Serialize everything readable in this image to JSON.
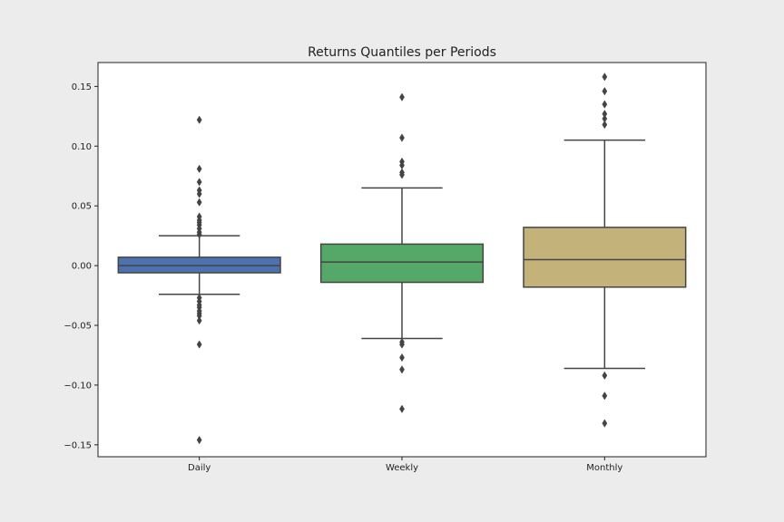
{
  "chart_data": {
    "type": "box",
    "title": "Returns Quantiles per Periods",
    "xlabel": "",
    "ylabel": "",
    "ylim": [
      -0.16,
      0.17
    ],
    "yticks": [
      -0.15,
      -0.1,
      -0.05,
      0.0,
      0.05,
      0.1,
      0.15
    ],
    "ytick_labels": [
      "−0.15",
      "−0.10",
      "−0.05",
      "0.00",
      "0.05",
      "0.10",
      "0.15"
    ],
    "grid": false,
    "categories": [
      "Daily",
      "Weekly",
      "Monthly"
    ],
    "boxes": [
      {
        "category": "Daily",
        "color": "#4c72b0",
        "whisker_low": -0.024,
        "q1": -0.006,
        "median": 0.0,
        "q3": 0.007,
        "whisker_high": 0.025,
        "outliers": [
          0.122,
          0.081,
          0.07,
          0.063,
          0.06,
          0.053,
          0.041,
          0.038,
          0.036,
          0.034,
          0.031,
          0.028,
          0.026,
          -0.027,
          -0.03,
          -0.033,
          -0.035,
          -0.038,
          -0.04,
          -0.042,
          -0.046,
          -0.066,
          -0.146
        ]
      },
      {
        "category": "Weekly",
        "color": "#55a868",
        "whisker_low": -0.061,
        "q1": -0.014,
        "median": 0.003,
        "q3": 0.018,
        "whisker_high": 0.065,
        "outliers": [
          0.141,
          0.107,
          0.087,
          0.084,
          0.078,
          0.076,
          -0.064,
          -0.066,
          -0.077,
          -0.087,
          -0.12
        ]
      },
      {
        "category": "Monthly",
        "color": "#c4b27b",
        "whisker_low": -0.086,
        "q1": -0.018,
        "median": 0.005,
        "q3": 0.032,
        "whisker_high": 0.105,
        "outliers": [
          0.158,
          0.146,
          0.135,
          0.127,
          0.123,
          0.118,
          -0.092,
          -0.109,
          -0.132
        ]
      }
    ]
  }
}
